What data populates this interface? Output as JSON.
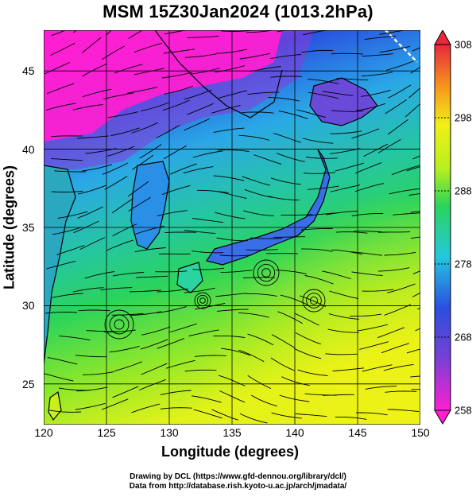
{
  "title": "MSM 15Z30Jan2024 (1013.2hPa)",
  "xlabel": "Longitude (degrees)",
  "ylabel": "Latitude  (degrees)",
  "x_ticks": [
    "120",
    "125",
    "130",
    "135",
    "140",
    "145",
    "150"
  ],
  "y_ticks": [
    "25",
    "30",
    "35",
    "40",
    "45"
  ],
  "colorbar_ticks": [
    "308",
    "298",
    "288",
    "278",
    "268",
    "258"
  ],
  "credit_line1": "Drawing by DCL (https://www.gfd-dennou.org/library/dcl/)",
  "credit_line2": "Data from http://database.rish.kyoto-u.ac.jp/arch/jmadata/",
  "colors": {
    "magenta": "#ff1fd2",
    "purple": "#7a3fd6",
    "blue": "#2a4fe0",
    "cyan": "#25c7df",
    "green": "#2bd45a",
    "yellow_green": "#b6f01f",
    "yellow": "#f0f016",
    "orange": "#f79a1c",
    "red": "#e8283c"
  },
  "chart_data": {
    "type": "heatmap",
    "title": "MSM 15Z30Jan2024 (1013.2hPa)",
    "xlabel": "Longitude (degrees)",
    "ylabel": "Latitude  (degrees)",
    "xlim": [
      120,
      150
    ],
    "ylim": [
      22.4,
      47.6
    ],
    "grid": true,
    "colorbar": {
      "range": [
        258,
        308
      ],
      "ticks": [
        308,
        298,
        288,
        278,
        268,
        258
      ],
      "position": "right"
    },
    "overlay": "wind streamlines"
  }
}
